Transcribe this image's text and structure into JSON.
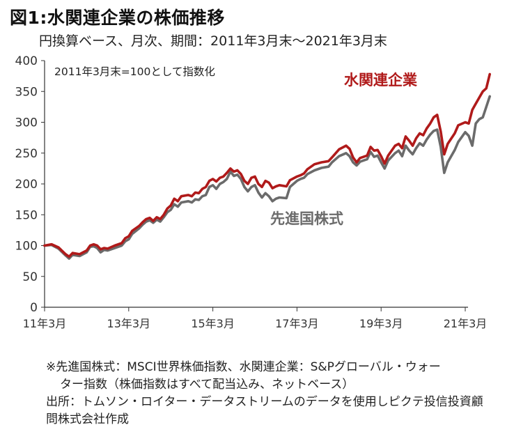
{
  "header": {
    "title": "図1:水関連企業の株価推移",
    "subtitle": "円換算ベース、月次、期間：2011年3月末～2021年3月末"
  },
  "chart_data": {
    "type": "line",
    "title": "図1:水関連企業の株価推移",
    "subtitle": "円換算ベース、月次、期間：2011年3月末～2021年3月末",
    "annotation": "2011年3月末=100として指数化",
    "ylim": [
      0,
      400
    ],
    "yticks": [
      0,
      50,
      100,
      150,
      200,
      250,
      300,
      350,
      400
    ],
    "xlim": [
      0,
      120
    ],
    "xticks": [
      {
        "pos": 0,
        "label": "11年3月"
      },
      {
        "pos": 24,
        "label": "13年3月"
      },
      {
        "pos": 48,
        "label": "15年3月"
      },
      {
        "pos": 72,
        "label": "17年3月"
      },
      {
        "pos": 96,
        "label": "19年3月"
      },
      {
        "pos": 120,
        "label": "21年3月"
      }
    ],
    "grid": false,
    "series": [
      {
        "name": "水関連企業",
        "color": "#b01a1a",
        "points": [
          [
            0,
            100
          ],
          [
            2,
            102
          ],
          [
            4,
            97
          ],
          [
            6,
            86
          ],
          [
            7,
            82
          ],
          [
            8,
            88
          ],
          [
            10,
            86
          ],
          [
            12,
            92
          ],
          [
            13,
            100
          ],
          [
            14,
            102
          ],
          [
            15,
            100
          ],
          [
            16,
            94
          ],
          [
            17,
            96
          ],
          [
            18,
            95
          ],
          [
            20,
            100
          ],
          [
            22,
            104
          ],
          [
            23,
            112
          ],
          [
            24,
            115
          ],
          [
            25,
            124
          ],
          [
            27,
            132
          ],
          [
            28,
            138
          ],
          [
            29,
            143
          ],
          [
            30,
            145
          ],
          [
            31,
            140
          ],
          [
            32,
            146
          ],
          [
            33,
            143
          ],
          [
            34,
            150
          ],
          [
            35,
            160
          ],
          [
            36,
            165
          ],
          [
            37,
            176
          ],
          [
            38,
            172
          ],
          [
            39,
            180
          ],
          [
            41,
            182
          ],
          [
            42,
            180
          ],
          [
            43,
            186
          ],
          [
            44,
            185
          ],
          [
            45,
            192
          ],
          [
            46,
            195
          ],
          [
            47,
            205
          ],
          [
            48,
            208
          ],
          [
            49,
            204
          ],
          [
            50,
            210
          ],
          [
            51,
            212
          ],
          [
            52,
            218
          ],
          [
            53,
            225
          ],
          [
            54,
            220
          ],
          [
            55,
            222
          ],
          [
            56,
            216
          ],
          [
            57,
            205
          ],
          [
            58,
            200
          ],
          [
            59,
            210
          ],
          [
            60,
            212
          ],
          [
            61,
            200
          ],
          [
            62,
            195
          ],
          [
            63,
            205
          ],
          [
            64,
            202
          ],
          [
            65,
            193
          ],
          [
            66,
            196
          ],
          [
            67,
            198
          ],
          [
            69,
            196
          ],
          [
            70,
            206
          ],
          [
            72,
            212
          ],
          [
            73,
            214
          ],
          [
            74,
            217
          ],
          [
            75,
            224
          ],
          [
            77,
            232
          ],
          [
            79,
            235
          ],
          [
            81,
            237
          ],
          [
            82,
            243
          ],
          [
            84,
            256
          ],
          [
            86,
            262
          ],
          [
            87,
            257
          ],
          [
            88,
            243
          ],
          [
            89,
            235
          ],
          [
            90,
            242
          ],
          [
            92,
            246
          ],
          [
            93,
            260
          ],
          [
            94,
            254
          ],
          [
            95,
            255
          ],
          [
            96,
            245
          ],
          [
            97,
            233
          ],
          [
            98,
            246
          ],
          [
            100,
            262
          ],
          [
            101,
            265
          ],
          [
            102,
            258
          ],
          [
            103,
            277
          ],
          [
            104,
            270
          ],
          [
            105,
            262
          ],
          [
            106,
            274
          ],
          [
            107,
            282
          ],
          [
            108,
            279
          ],
          [
            109,
            290
          ],
          [
            110,
            298
          ],
          [
            111,
            308
          ],
          [
            112,
            312
          ],
          [
            113,
            285
          ],
          [
            114,
            248
          ],
          [
            115,
            265
          ],
          [
            117,
            282
          ],
          [
            118,
            295
          ],
          [
            120,
            300
          ],
          [
            121,
            298
          ],
          [
            122,
            320
          ],
          [
            123,
            330
          ],
          [
            124,
            340
          ],
          [
            125,
            350
          ],
          [
            126,
            355
          ],
          [
            127,
            378
          ]
        ]
      },
      {
        "name": "先進国株式",
        "color": "#6b6b6b",
        "points": [
          [
            0,
            100
          ],
          [
            2,
            101
          ],
          [
            4,
            95
          ],
          [
            6,
            84
          ],
          [
            7,
            79
          ],
          [
            8,
            85
          ],
          [
            10,
            83
          ],
          [
            12,
            89
          ],
          [
            13,
            98
          ],
          [
            14,
            99
          ],
          [
            15,
            96
          ],
          [
            16,
            89
          ],
          [
            17,
            93
          ],
          [
            18,
            92
          ],
          [
            20,
            96
          ],
          [
            22,
            100
          ],
          [
            23,
            107
          ],
          [
            24,
            110
          ],
          [
            25,
            119
          ],
          [
            27,
            128
          ],
          [
            28,
            134
          ],
          [
            29,
            139
          ],
          [
            30,
            141
          ],
          [
            31,
            137
          ],
          [
            32,
            142
          ],
          [
            33,
            139
          ],
          [
            34,
            146
          ],
          [
            35,
            154
          ],
          [
            36,
            158
          ],
          [
            37,
            167
          ],
          [
            38,
            163
          ],
          [
            39,
            170
          ],
          [
            41,
            172
          ],
          [
            42,
            170
          ],
          [
            43,
            175
          ],
          [
            44,
            174
          ],
          [
            45,
            180
          ],
          [
            46,
            182
          ],
          [
            47,
            195
          ],
          [
            48,
            198
          ],
          [
            49,
            192
          ],
          [
            50,
            200
          ],
          [
            51,
            203
          ],
          [
            52,
            208
          ],
          [
            53,
            220
          ],
          [
            54,
            213
          ],
          [
            55,
            215
          ],
          [
            56,
            208
          ],
          [
            57,
            195
          ],
          [
            58,
            188
          ],
          [
            59,
            195
          ],
          [
            60,
            198
          ],
          [
            61,
            186
          ],
          [
            62,
            178
          ],
          [
            63,
            185
          ],
          [
            64,
            180
          ],
          [
            65,
            172
          ],
          [
            66,
            176
          ],
          [
            67,
            178
          ],
          [
            69,
            177
          ],
          [
            70,
            195
          ],
          [
            72,
            205
          ],
          [
            73,
            208
          ],
          [
            74,
            210
          ],
          [
            75,
            216
          ],
          [
            77,
            222
          ],
          [
            79,
            226
          ],
          [
            81,
            228
          ],
          [
            82,
            235
          ],
          [
            84,
            245
          ],
          [
            86,
            250
          ],
          [
            87,
            245
          ],
          [
            88,
            235
          ],
          [
            89,
            230
          ],
          [
            90,
            236
          ],
          [
            92,
            240
          ],
          [
            93,
            252
          ],
          [
            94,
            244
          ],
          [
            95,
            246
          ],
          [
            96,
            235
          ],
          [
            97,
            225
          ],
          [
            98,
            238
          ],
          [
            100,
            250
          ],
          [
            101,
            254
          ],
          [
            102,
            245
          ],
          [
            103,
            262
          ],
          [
            104,
            254
          ],
          [
            105,
            248
          ],
          [
            106,
            258
          ],
          [
            107,
            266
          ],
          [
            108,
            262
          ],
          [
            109,
            272
          ],
          [
            110,
            280
          ],
          [
            111,
            286
          ],
          [
            112,
            288
          ],
          [
            113,
            260
          ],
          [
            114,
            218
          ],
          [
            115,
            235
          ],
          [
            117,
            255
          ],
          [
            118,
            268
          ],
          [
            120,
            284
          ],
          [
            121,
            278
          ],
          [
            122,
            262
          ],
          [
            123,
            298
          ],
          [
            124,
            305
          ],
          [
            125,
            308
          ],
          [
            126,
            325
          ],
          [
            127,
            342
          ]
        ]
      }
    ]
  },
  "notes": {
    "line1": "※先進国株式：MSCI世界株価指数、水関連企業：S&Pグローバル・ウォー",
    "line2": "ター指数（株価指数はすべて配当込み、ネットベース）",
    "line3": "出所：トムソン・ロイター・データストリームのデータを使用しピクテ投信投資顧",
    "line4": "問株式会社作成"
  }
}
